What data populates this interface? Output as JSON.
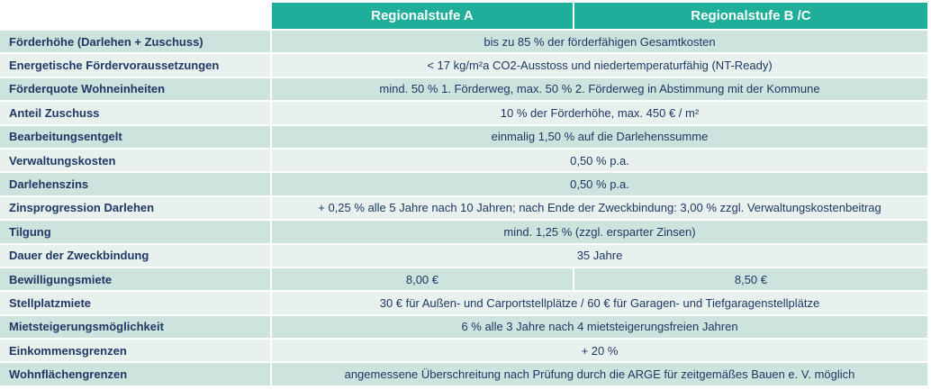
{
  "header": {
    "col_a": "Regionalstufe A",
    "col_bc": "Regionalstufe B /C"
  },
  "rows": [
    {
      "label": "Förderhöhe (Darlehen + Zuschuss)",
      "value": "bis zu 85 % der förderfähigen Gesamtkosten"
    },
    {
      "label": "Energetische Fördervoraussetzungen",
      "value": "< 17 kg/m²a CO2-Ausstoss und niedertemperaturfähig (NT-Ready)"
    },
    {
      "label": "Förderquote Wohneinheiten",
      "value": "mind. 50 % 1. Förderweg, max. 50 % 2. Förderweg in Abstimmung mit der Kommune"
    },
    {
      "label": "Anteil Zuschuss",
      "value": "10 % der Förderhöhe, max. 450 € / m²"
    },
    {
      "label": "Bearbeitungsentgelt",
      "value": "einmalig 1,50 % auf die Darlehenssumme"
    },
    {
      "label": "Verwaltungskosten",
      "value": "0,50 % p.a."
    },
    {
      "label": "Darlehenszins",
      "value": "0,50 % p.a."
    },
    {
      "label": "Zinsprogression Darlehen",
      "value": "+ 0,25 % alle 5 Jahre nach 10 Jahren; nach Ende der Zweckbindung: 3,00 % zzgl. Verwaltungskostenbeitrag"
    },
    {
      "label": "Tilgung",
      "value": "mind. 1,25 % (zzgl. ersparter Zinsen)"
    },
    {
      "label": "Dauer der Zweckbindung",
      "value": "35 Jahre"
    },
    {
      "label": "Bewilligungsmiete",
      "value_a": "8,00 €",
      "value_bc": "8,50 €"
    },
    {
      "label": "Stellplatzmiete",
      "value": "30 € für Außen- und Carportstellplätze  /  60 € für Garagen- und Tiefgaragenstellplätze"
    },
    {
      "label": "Mietsteigerungsmöglichkeit",
      "value": "6 % alle 3 Jahre nach 4 mietsteigerungsfreien Jahren"
    },
    {
      "label": "Einkommensgrenzen",
      "value": "+ 20 %"
    },
    {
      "label": "Wohnflächengrenzen",
      "value": "angemessene Überschreitung nach Prüfung durch die ARGE für zeitgemäßes Bauen e. V. möglich"
    }
  ]
}
